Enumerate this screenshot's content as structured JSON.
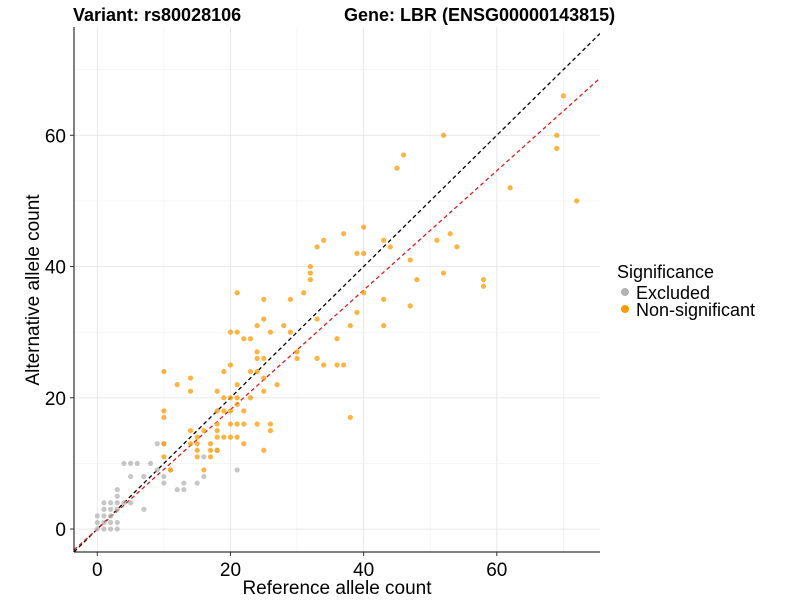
{
  "chart_data": {
    "type": "scatter",
    "title_left": "Variant: rs80028106",
    "title_right": "Gene: LBR (ENSG00000143815)",
    "xlabel": "Reference allele count",
    "ylabel": "Alternative allele count",
    "xlim": [
      -3.5,
      75.5
    ],
    "ylim": [
      -3.5,
      76.5
    ],
    "x_ticks": [
      0,
      20,
      40,
      60
    ],
    "y_ticks": [
      0,
      20,
      40,
      60
    ],
    "grid": true,
    "legend": {
      "title": "Significance",
      "position": "right",
      "entries": [
        {
          "label": "Excluded",
          "color": "#b3b3b3"
        },
        {
          "label": "Non-significant",
          "color": "#ff9900"
        }
      ]
    },
    "reference_lines": [
      {
        "slope": 1.0,
        "intercept": 0,
        "color": "#000000",
        "style": "dashed"
      },
      {
        "slope": 0.91,
        "intercept": 0,
        "color": "#e41a1c",
        "style": "dashed"
      }
    ],
    "series": [
      {
        "name": "Excluded",
        "color": "#b3b3b3",
        "points": [
          [
            0,
            0
          ],
          [
            1,
            0
          ],
          [
            2,
            0
          ],
          [
            0,
            1
          ],
          [
            1,
            1
          ],
          [
            2,
            1
          ],
          [
            3,
            1
          ],
          [
            0,
            2
          ],
          [
            1,
            2
          ],
          [
            2,
            2
          ],
          [
            1,
            3
          ],
          [
            2,
            3
          ],
          [
            3,
            3
          ],
          [
            1,
            4
          ],
          [
            2,
            4
          ],
          [
            3,
            4
          ],
          [
            3,
            5
          ],
          [
            3,
            6
          ],
          [
            3,
            0
          ],
          [
            4,
            4
          ],
          [
            5,
            4
          ],
          [
            5,
            8
          ],
          [
            4,
            10
          ],
          [
            5,
            10
          ],
          [
            6,
            10
          ],
          [
            7,
            3
          ],
          [
            7,
            8
          ],
          [
            8,
            10
          ],
          [
            9,
            9
          ],
          [
            9,
            13
          ],
          [
            10,
            13
          ],
          [
            10,
            8
          ],
          [
            10,
            7
          ],
          [
            11,
            9
          ],
          [
            13,
            7
          ],
          [
            13,
            6
          ],
          [
            12,
            6
          ],
          [
            15,
            7
          ],
          [
            16,
            8
          ],
          [
            16,
            11
          ],
          [
            18,
            12
          ],
          [
            21,
            9
          ]
        ]
      },
      {
        "name": "Non-significant",
        "color": "#ff9900",
        "points": [
          [
            10,
            24
          ],
          [
            10,
            18
          ],
          [
            10,
            17
          ],
          [
            10,
            13
          ],
          [
            10,
            11
          ],
          [
            11,
            9
          ],
          [
            12,
            22
          ],
          [
            14,
            23
          ],
          [
            14,
            21
          ],
          [
            14,
            15
          ],
          [
            14,
            13
          ],
          [
            15,
            14
          ],
          [
            15,
            13
          ],
          [
            15,
            12
          ],
          [
            15,
            11
          ],
          [
            16,
            15
          ],
          [
            16,
            9
          ],
          [
            17,
            13
          ],
          [
            17,
            12
          ],
          [
            17,
            11
          ],
          [
            18,
            21
          ],
          [
            18,
            18
          ],
          [
            18,
            16
          ],
          [
            18,
            15
          ],
          [
            18,
            14
          ],
          [
            18,
            12
          ],
          [
            19,
            24
          ],
          [
            19,
            20
          ],
          [
            19,
            18
          ],
          [
            19,
            14
          ],
          [
            20,
            30
          ],
          [
            20,
            25
          ],
          [
            20,
            20
          ],
          [
            20,
            18
          ],
          [
            20,
            16
          ],
          [
            20,
            14
          ],
          [
            21,
            36
          ],
          [
            21,
            30
          ],
          [
            21,
            22
          ],
          [
            21,
            20
          ],
          [
            21,
            19
          ],
          [
            21,
            16
          ],
          [
            21,
            14
          ],
          [
            22,
            29
          ],
          [
            22,
            18
          ],
          [
            22,
            16
          ],
          [
            22,
            13
          ],
          [
            23,
            29
          ],
          [
            23,
            24
          ],
          [
            23,
            20
          ],
          [
            24,
            31
          ],
          [
            24,
            27
          ],
          [
            24,
            26
          ],
          [
            24,
            24
          ],
          [
            24,
            16
          ],
          [
            25,
            35
          ],
          [
            25,
            32
          ],
          [
            25,
            26
          ],
          [
            25,
            23
          ],
          [
            25,
            21
          ],
          [
            25,
            12
          ],
          [
            26,
            30
          ],
          [
            26,
            16
          ],
          [
            26,
            15
          ],
          [
            27,
            22
          ],
          [
            28,
            31
          ],
          [
            29,
            35
          ],
          [
            29,
            30
          ],
          [
            30,
            27
          ],
          [
            30,
            26
          ],
          [
            31,
            36
          ],
          [
            32,
            40
          ],
          [
            32,
            39
          ],
          [
            32,
            38
          ],
          [
            33,
            43
          ],
          [
            33,
            32
          ],
          [
            33,
            26
          ],
          [
            34,
            44
          ],
          [
            34,
            25
          ],
          [
            36,
            29
          ],
          [
            36,
            25
          ],
          [
            37,
            45
          ],
          [
            37,
            25
          ],
          [
            38,
            17
          ],
          [
            38,
            31
          ],
          [
            39,
            42
          ],
          [
            39,
            33
          ],
          [
            40,
            46
          ],
          [
            40,
            42
          ],
          [
            40,
            36
          ],
          [
            43,
            44
          ],
          [
            43,
            35
          ],
          [
            43,
            31
          ],
          [
            44,
            43
          ],
          [
            45,
            55
          ],
          [
            46,
            57
          ],
          [
            47,
            41
          ],
          [
            47,
            34
          ],
          [
            48,
            38
          ],
          [
            51,
            44
          ],
          [
            52,
            60
          ],
          [
            52,
            39
          ],
          [
            53,
            45
          ],
          [
            54,
            43
          ],
          [
            58,
            38
          ],
          [
            58,
            37
          ],
          [
            62,
            52
          ],
          [
            69,
            60
          ],
          [
            69,
            58
          ],
          [
            70,
            66
          ],
          [
            72,
            50
          ]
        ]
      }
    ]
  }
}
